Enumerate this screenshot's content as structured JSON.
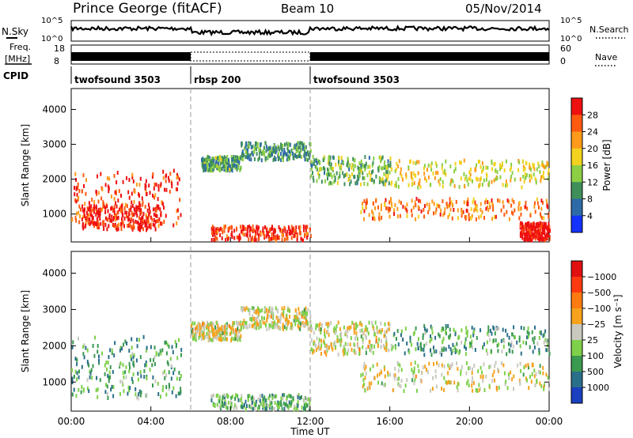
{
  "header": {
    "station": "Prince George (fitACF)",
    "beam": "Beam 10",
    "date": "05/Nov/2014"
  },
  "sky_panel": {
    "left_label": "N.Sky",
    "right_label": "N.Search",
    "left_ticks": [
      "10^5",
      "10^0"
    ],
    "right_ticks": [
      "10^5",
      "10^0"
    ]
  },
  "freq_panel": {
    "left_label_1": "Freq.",
    "left_label_2": "[MHz]",
    "right_label": "Nave",
    "left_ticks": [
      "18",
      "8"
    ],
    "right_ticks": [
      "60",
      "0"
    ]
  },
  "cpid": {
    "label": "CPID",
    "segments": [
      {
        "name": "twofsound 3503",
        "start": 0,
        "end": 6
      },
      {
        "name": "rbsp 200",
        "start": 6,
        "end": 12
      },
      {
        "name": "twofsound 3503",
        "start": 12,
        "end": 24
      }
    ]
  },
  "x_axis": {
    "title": "Time UT",
    "ticks": [
      "00:00",
      "04:00",
      "08:00",
      "12:00",
      "16:00",
      "20:00",
      "00:00"
    ],
    "range": [
      0,
      24
    ]
  },
  "chart_data": [
    {
      "type": "heatmap",
      "ylabel": "Slant Range [km]",
      "yticks": [
        "1000",
        "2000",
        "3000",
        "4000"
      ],
      "ylim": [
        200,
        4600
      ],
      "colorbar_label": "Power [dB]",
      "colorbar_ticks": [
        "4",
        "8",
        "12",
        "16",
        "20",
        "24",
        "28"
      ],
      "colorbar_colors": [
        "#1432ff",
        "#2d6aa8",
        "#3f8f5a",
        "#8ccf44",
        "#f2d21e",
        "#ff9a1a",
        "#ff5a10",
        "#ee1010"
      ],
      "regions": [
        {
          "t": [
            0.0,
            5.5
          ],
          "r": [
            700,
            2300
          ],
          "level": 0.85
        },
        {
          "t": [
            0.5,
            4.5
          ],
          "r": [
            600,
            1300
          ],
          "level": 0.95
        },
        {
          "t": [
            6.5,
            8.5
          ],
          "r": [
            2300,
            2700
          ],
          "level": 0.35
        },
        {
          "t": [
            7.0,
            12.0
          ],
          "r": [
            300,
            700
          ],
          "level": 0.9
        },
        {
          "t": [
            8.5,
            12.0
          ],
          "r": [
            2600,
            3100
          ],
          "level": 0.3
        },
        {
          "t": [
            12.0,
            16.0
          ],
          "r": [
            1900,
            2700
          ],
          "level": 0.4
        },
        {
          "t": [
            14.5,
            24.0
          ],
          "r": [
            900,
            1500
          ],
          "level": 0.75
        },
        {
          "t": [
            16.0,
            24.0
          ],
          "r": [
            1800,
            2600
          ],
          "level": 0.55
        },
        {
          "t": [
            22.5,
            24.0
          ],
          "r": [
            300,
            800
          ],
          "level": 1.0
        }
      ]
    },
    {
      "type": "heatmap",
      "ylabel": "Slant Range [km]",
      "yticks": [
        "1000",
        "2000",
        "3000",
        "4000"
      ],
      "ylim": [
        200,
        4600
      ],
      "colorbar_label": "Velocity [m s⁻¹]",
      "colorbar_ticks": [
        "1000",
        "500",
        "100",
        "25",
        "−25",
        "−100",
        "−500",
        "−1000"
      ],
      "colorbar_colors": [
        "#1a3fbf",
        "#2a6f8a",
        "#3a9a50",
        "#7ed04a",
        "#c9c9c0",
        "#f6a21c",
        "#ff7a10",
        "#ff3a10",
        "#e01010"
      ],
      "regions": [
        {
          "t": [
            0.0,
            5.5
          ],
          "r": [
            600,
            2300
          ],
          "level": 0.3
        },
        {
          "t": [
            6.0,
            8.5
          ],
          "r": [
            2200,
            2700
          ],
          "level": 0.5
        },
        {
          "t": [
            7.0,
            12.0
          ],
          "r": [
            300,
            700
          ],
          "level": 0.35
        },
        {
          "t": [
            8.5,
            12.0
          ],
          "r": [
            2500,
            3100
          ],
          "level": 0.5
        },
        {
          "t": [
            12.0,
            16.0
          ],
          "r": [
            1800,
            2700
          ],
          "level": 0.5
        },
        {
          "t": [
            14.5,
            24.0
          ],
          "r": [
            800,
            1600
          ],
          "level": 0.5
        },
        {
          "t": [
            16.0,
            24.0
          ],
          "r": [
            1800,
            2600
          ],
          "level": 0.3
        }
      ]
    }
  ]
}
